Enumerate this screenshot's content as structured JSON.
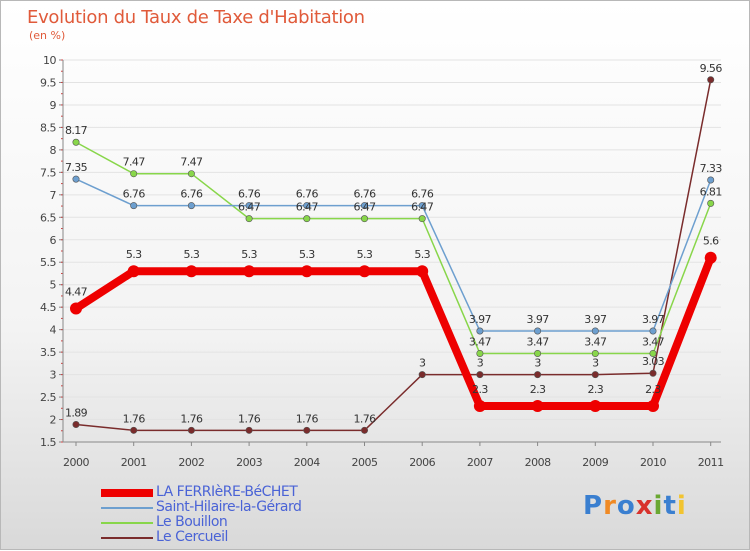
{
  "title": "Evolution du Taux de Taxe d'Habitation",
  "unit": "(en %)",
  "logo": {
    "text": "Proxiti",
    "colors": [
      "#3a7fd0",
      "#f08a24",
      "#3a7fd0",
      "#d8322c",
      "#6aa832",
      "#3a7fd0",
      "#f2c430"
    ]
  },
  "chart_data": {
    "type": "line",
    "title": "Evolution du Taux de Taxe d'Habitation",
    "ylabel": "(en %)",
    "xlabel": "",
    "ylim": [
      1.5,
      10
    ],
    "yticks": [
      "1.5",
      "2",
      "2.5",
      "3",
      "3.5",
      "4",
      "4.5",
      "5",
      "5.5",
      "6",
      "6.5",
      "7",
      "7.5",
      "8",
      "8.5",
      "9",
      "9.5",
      "10"
    ],
    "categories": [
      "2000",
      "2001",
      "2002",
      "2003",
      "2004",
      "2005",
      "2006",
      "2007",
      "2008",
      "2009",
      "2010",
      "2011"
    ],
    "series": [
      {
        "name": "LA FERRIèRE-BéCHET",
        "color": "#ee0000",
        "thick": true,
        "values": [
          4.47,
          5.3,
          5.3,
          5.3,
          5.3,
          5.3,
          5.3,
          2.3,
          2.3,
          2.3,
          2.3,
          5.6
        ],
        "labels": [
          "4.47",
          "5.3",
          "5.3",
          "5.3",
          "5.3",
          "5.3",
          "5.3",
          "2.3",
          "2.3",
          "2.3",
          "2.3",
          "5.6"
        ]
      },
      {
        "name": "Saint-Hilaire-la-Gérard",
        "color": "#6d9fcf",
        "thick": false,
        "values": [
          7.35,
          6.76,
          6.76,
          6.76,
          6.76,
          6.76,
          6.76,
          3.97,
          3.97,
          3.97,
          3.97,
          7.33
        ],
        "labels": [
          "7.35",
          "6.76",
          "6.76",
          "6.76",
          "6.76",
          "6.76",
          "6.76",
          "3.97",
          "3.97",
          "3.97",
          "3.97",
          "7.33"
        ]
      },
      {
        "name": "Le Bouillon",
        "color": "#88d64a",
        "thick": false,
        "values": [
          8.17,
          7.47,
          7.47,
          6.47,
          6.47,
          6.47,
          6.47,
          3.47,
          3.47,
          3.47,
          3.47,
          6.81
        ],
        "labels": [
          "8.17",
          "7.47",
          "7.47",
          "6.47",
          "6.47",
          "6.47",
          "6.47",
          "3.47",
          "3.47",
          "3.47",
          "3.47",
          "6.81"
        ]
      },
      {
        "name": "Le Cercueil",
        "color": "#7a2c2c",
        "thick": false,
        "values": [
          1.89,
          1.76,
          1.76,
          1.76,
          1.76,
          1.76,
          3,
          3,
          3,
          3,
          3.03,
          9.56
        ],
        "labels": [
          "1.89",
          "1.76",
          "1.76",
          "1.76",
          "1.76",
          "1.76",
          "3",
          "3",
          "3",
          "3",
          "3.03",
          "9.56"
        ]
      }
    ],
    "legend_position": "bottom-left"
  }
}
